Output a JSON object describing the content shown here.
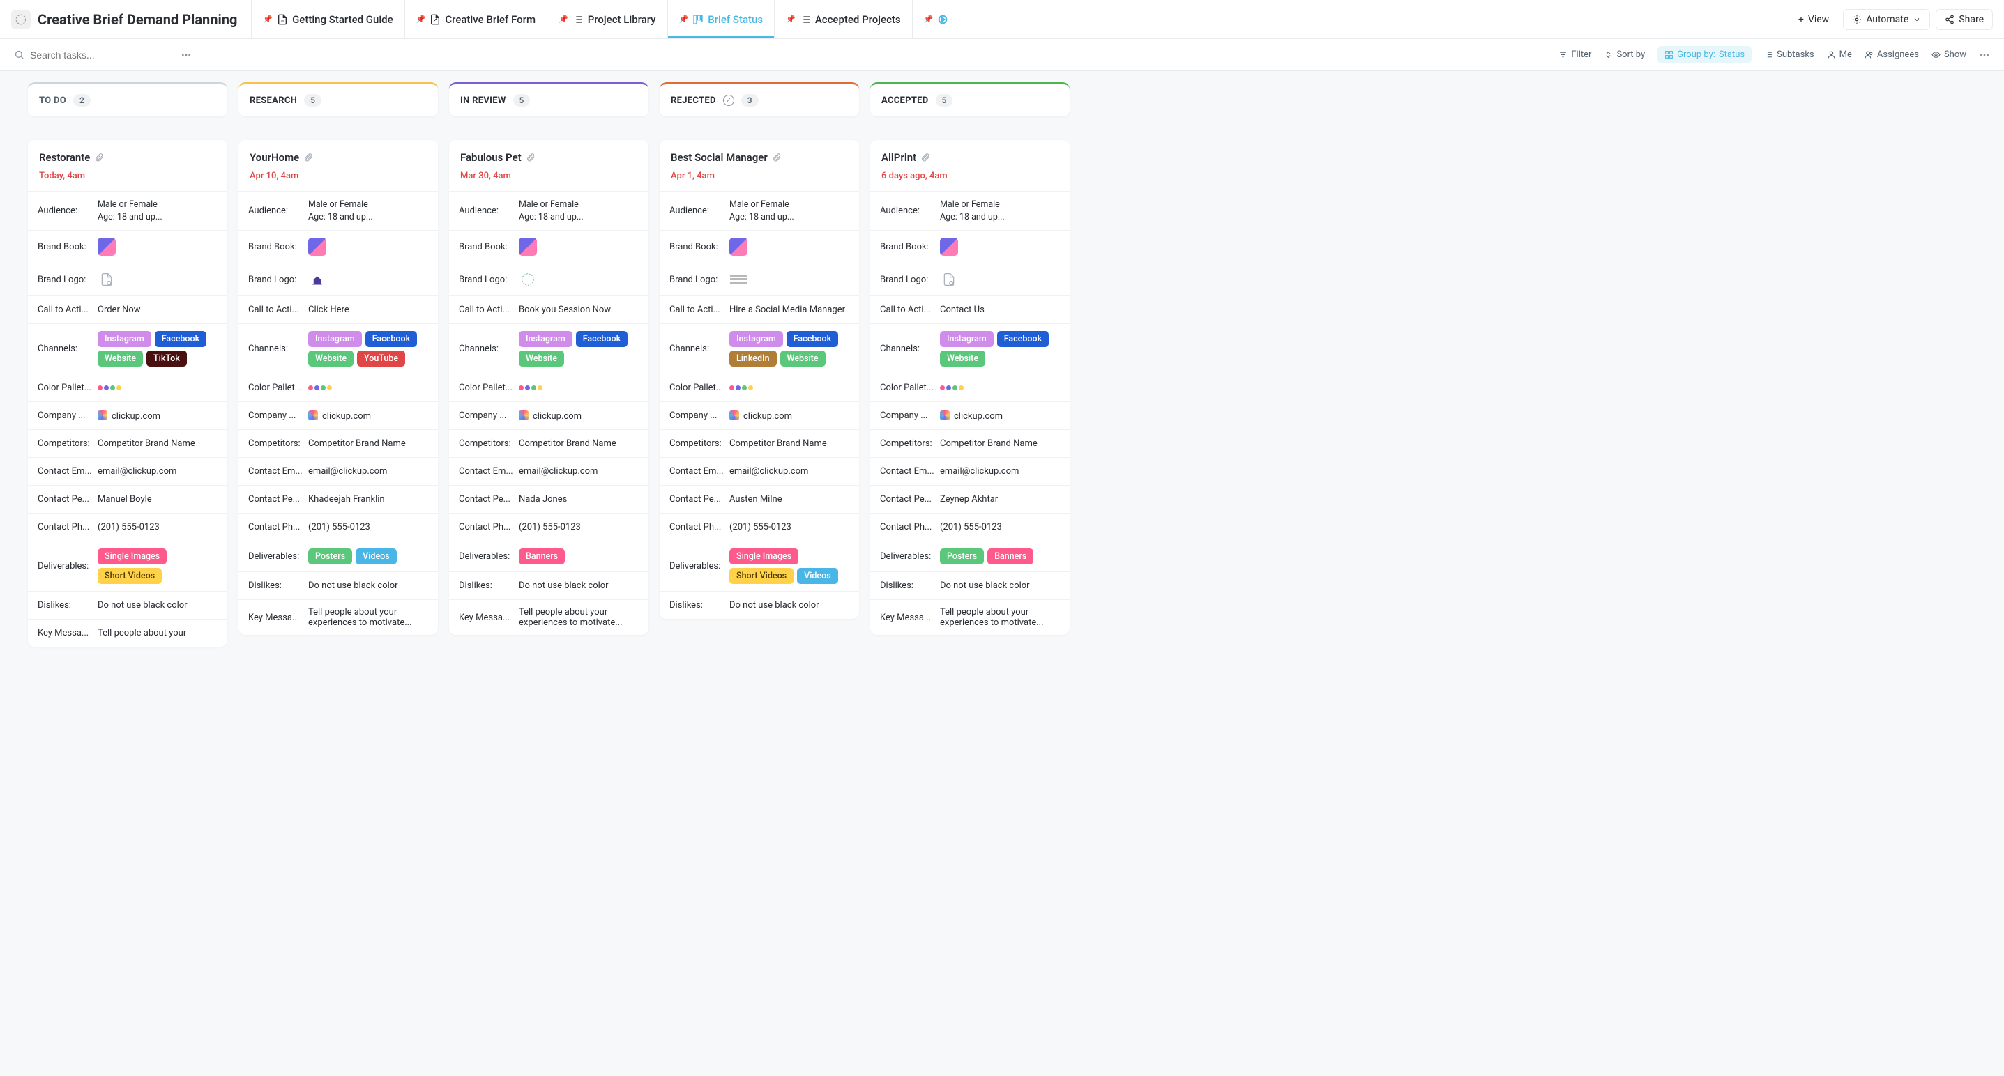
{
  "page": {
    "title": "Creative Brief Demand Planning",
    "search_placeholder": "Search tasks..."
  },
  "tabs": [
    {
      "label": "Getting Started Guide",
      "icon": "doc"
    },
    {
      "label": "Creative Brief Form",
      "icon": "form"
    },
    {
      "label": "Project Library",
      "icon": "list"
    },
    {
      "label": "Brief Status",
      "icon": "board",
      "active": true
    },
    {
      "label": "Accepted Projects",
      "icon": "list"
    },
    {
      "label": "",
      "icon": "embed"
    }
  ],
  "top_actions": {
    "view": "View",
    "automate": "Automate",
    "share": "Share"
  },
  "toolbar": {
    "filter": "Filter",
    "sort": "Sort by",
    "group_label": "Group by:",
    "group_value": "Status",
    "subtasks": "Subtasks",
    "me": "Me",
    "assignees": "Assignees",
    "show": "Show"
  },
  "field_labels": {
    "audience": "Audience:",
    "brand_book": "Brand Book:",
    "brand_logo": "Brand Logo:",
    "cta": "Call to Acti...",
    "channels": "Channels:",
    "palette": "Color Pallet...",
    "company": "Company ...",
    "competitors": "Competitors:",
    "contact_email": "Contact Em...",
    "contact_person": "Contact Pe...",
    "contact_phone": "Contact Ph...",
    "deliverables": "Deliverables:",
    "dislikes": "Dislikes:",
    "key_message": "Key Messa..."
  },
  "channel_colors": {
    "Instagram": "#cf8cea",
    "Facebook": "#1f5ed4",
    "Website": "#5bc77b",
    "TikTok": "#4a1010",
    "YouTube": "#e14646",
    "LinkedIn": "#b07e37"
  },
  "deliverable_colors": {
    "Single Images": "#ff5a8c",
    "Short Videos": "#ffd24a",
    "Posters": "#5bc77b",
    "Videos": "#4ab6e5",
    "Banners": "#ff5a8c"
  },
  "deliverable_text_colors": {
    "Short Videos": "#4a3a00"
  },
  "palette_dots": [
    "#ff5a8c",
    "#6e68e8",
    "#5bc77b",
    "#ffd24a"
  ],
  "columns": [
    {
      "id": "todo",
      "title": "TO DO",
      "count": 2,
      "color": "#d0d4d8",
      "title_color": "#54616e",
      "show_check": false,
      "card": {
        "title": "Restorante",
        "date": "Today, 4am",
        "audience_l1": "Male or Female",
        "audience_l2": "Age: 18 and up...",
        "logo_glyph": "doc",
        "cta": "Order Now",
        "channels": [
          "Instagram",
          "Facebook",
          "Website",
          "TikTok"
        ],
        "company": "clickup.com",
        "competitors": "Competitor Brand Name",
        "contact_email": "email@clickup.com",
        "contact_person": "Manuel Boyle",
        "contact_phone": "(201) 555-0123",
        "deliverables": [
          "Single Images",
          "Short Videos"
        ],
        "dislikes": "Do not use black color",
        "key_message": "Tell people about your"
      }
    },
    {
      "id": "research",
      "title": "RESEARCH",
      "count": 5,
      "color": "#f7c24a",
      "title_color": "#2a2e34",
      "show_check": false,
      "card": {
        "title": "YourHome",
        "date": "Apr 10, 4am",
        "audience_l1": "Male or Female",
        "audience_l2": "Age: 18 and up...",
        "logo_glyph": "house",
        "cta": "Click Here",
        "channels": [
          "Instagram",
          "Facebook",
          "Website",
          "YouTube"
        ],
        "company": "clickup.com",
        "competitors": "Competitor Brand Name",
        "contact_email": "email@clickup.com",
        "contact_person": "Khadeejah Franklin",
        "contact_phone": "(201) 555-0123",
        "deliverables": [
          "Posters",
          "Videos"
        ],
        "dislikes": "Do not use black color",
        "key_message": "Tell people about your experiences to motivate..."
      }
    },
    {
      "id": "inreview",
      "title": "IN REVIEW",
      "count": 5,
      "color": "#7b5ed4",
      "title_color": "#2a2e34",
      "show_check": false,
      "card": {
        "title": "Fabulous Pet",
        "date": "Mar 30, 4am",
        "audience_l1": "Male or Female",
        "audience_l2": "Age: 18 and up...",
        "logo_glyph": "circle",
        "cta": "Book you Session Now",
        "channels": [
          "Instagram",
          "Facebook",
          "Website"
        ],
        "company": "clickup.com",
        "competitors": "Competitor Brand Name",
        "contact_email": "email@clickup.com",
        "contact_person": "Nada Jones",
        "contact_phone": "(201) 555-0123",
        "deliverables": [
          "Banners"
        ],
        "dislikes": "Do not use black color",
        "key_message": "Tell people about your experiences to motivate..."
      }
    },
    {
      "id": "rejected",
      "title": "REJECTED",
      "count": 3,
      "color": "#e16a3b",
      "title_color": "#2a2e34",
      "show_check": true,
      "card": {
        "title": "Best Social Manager",
        "date": "Apr 1, 4am",
        "audience_l1": "Male or Female",
        "audience_l2": "Age: 18 and up...",
        "logo_glyph": "bar",
        "cta": "Hire a Social Media Manager",
        "channels": [
          "Instagram",
          "Facebook",
          "LinkedIn",
          "Website"
        ],
        "company": "clickup.com",
        "competitors": "Competitor Brand Name",
        "contact_email": "email@clickup.com",
        "contact_person": "Austen Milne",
        "contact_phone": "(201) 555-0123",
        "deliverables": [
          "Single Images",
          "Short Videos",
          "Videos"
        ],
        "dislikes": "Do not use black color",
        "key_message": ""
      }
    },
    {
      "id": "accepted",
      "title": "ACCEPTED",
      "count": 5,
      "color": "#4fb34f",
      "title_color": "#2a2e34",
      "show_check": false,
      "card": {
        "title": "AllPrint",
        "date": "6 days ago, 4am",
        "audience_l1": "Male or Female",
        "audience_l2": "Age: 18 and up...",
        "logo_glyph": "doc",
        "cta": "Contact Us",
        "channels": [
          "Instagram",
          "Facebook",
          "Website"
        ],
        "company": "clickup.com",
        "competitors": "Competitor Brand Name",
        "contact_email": "email@clickup.com",
        "contact_person": "Zeynep Akhtar",
        "contact_phone": "(201) 555-0123",
        "deliverables": [
          "Posters",
          "Banners"
        ],
        "dislikes": "Do not use black color",
        "key_message": "Tell people about your experiences to motivate..."
      }
    }
  ]
}
